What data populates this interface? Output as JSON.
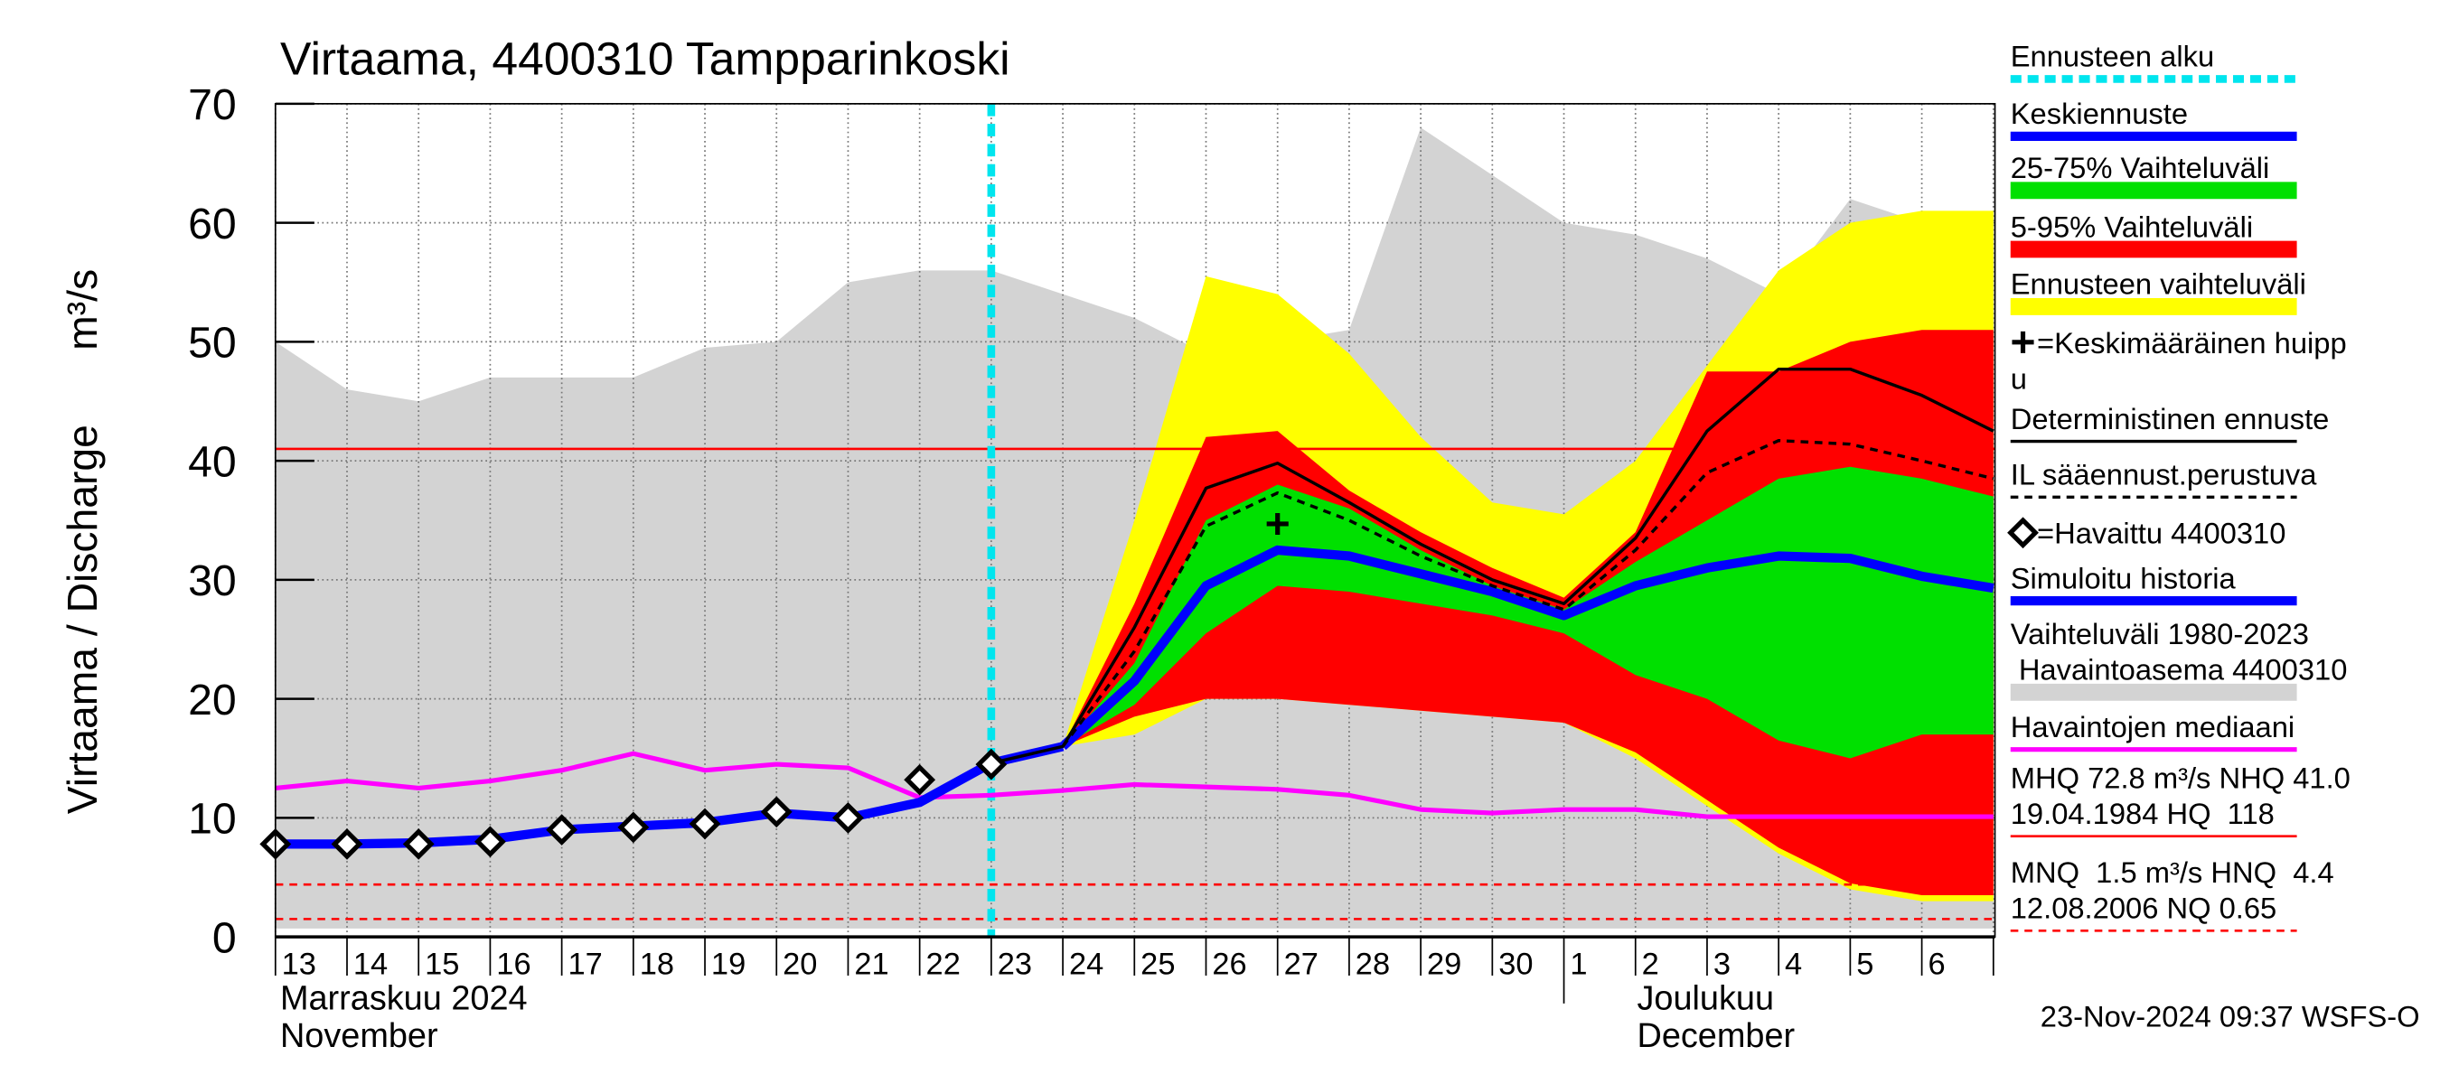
{
  "chart_data": {
    "type": "line",
    "title": "Virtaama, 4400310 Tampparinkoski",
    "y_label": "Virtaama / Discharge",
    "y_unit": "m³/s",
    "categories": [
      "13",
      "14",
      "15",
      "16",
      "17",
      "18",
      "19",
      "20",
      "21",
      "22",
      "23",
      "24",
      "25",
      "26",
      "27",
      "28",
      "29",
      "30",
      "1",
      "2",
      "3",
      "4",
      "5",
      "6",
      null
    ],
    "months": [
      [
        "Marraskuu 2024",
        "November"
      ],
      [
        "Joulukuu",
        "December"
      ]
    ],
    "ylim": [
      0,
      70
    ],
    "yticks": [
      0,
      10,
      20,
      30,
      40,
      50,
      60,
      70
    ],
    "grid": true,
    "forecast_start": "23",
    "forecast_color": "#00e5ee",
    "series": [
      {
        "kind": "band",
        "color": "#d3d3d3",
        "values": [
          50,
          46,
          45,
          47,
          47,
          47,
          49.5,
          50,
          55,
          56,
          56,
          54,
          52,
          49,
          50,
          51,
          68,
          64,
          60,
          59,
          57,
          54,
          62,
          60,
          59
        ],
        "lower": [
          0.7,
          0.7,
          0.7,
          0.7,
          0.7,
          0.7,
          0.7,
          0.7,
          0.7,
          0.7,
          0.7,
          0.7,
          0.7,
          0.7,
          0.7,
          0.7,
          0.7,
          0.7,
          0.7,
          0.7,
          0.7,
          0.7,
          0.7,
          0.7,
          0.7
        ]
      },
      {
        "kind": "band",
        "color": "#ffff00",
        "values": [
          null,
          null,
          null,
          null,
          null,
          null,
          null,
          null,
          null,
          null,
          null,
          16,
          35,
          55.5,
          54,
          49,
          42,
          36.5,
          35.5,
          40,
          48,
          56,
          60,
          61,
          61
        ],
        "lower": [
          null,
          null,
          null,
          null,
          null,
          null,
          null,
          null,
          null,
          null,
          null,
          16,
          17,
          20,
          20,
          19.5,
          19,
          18.5,
          18,
          15,
          11,
          7,
          4,
          3,
          3
        ]
      },
      {
        "kind": "band",
        "color": "#ff0000",
        "values": [
          null,
          null,
          null,
          null,
          null,
          null,
          null,
          null,
          null,
          null,
          null,
          16,
          28,
          42,
          42.5,
          37.5,
          34,
          31,
          28.5,
          34,
          47.5,
          47.5,
          50,
          51,
          51
        ],
        "lower": [
          null,
          null,
          null,
          null,
          null,
          null,
          null,
          null,
          null,
          null,
          null,
          16,
          18.5,
          20,
          20,
          19.5,
          19,
          18.5,
          18,
          15.5,
          11.5,
          7.5,
          4.5,
          3.5,
          3.5
        ]
      },
      {
        "kind": "band",
        "color": "#00e000",
        "values": [
          null,
          null,
          null,
          null,
          null,
          null,
          null,
          null,
          null,
          null,
          null,
          16,
          23,
          35,
          38,
          36,
          32.5,
          29.5,
          27.5,
          31.5,
          35,
          38.5,
          39.5,
          38.5,
          37
        ],
        "lower": [
          null,
          null,
          null,
          null,
          null,
          null,
          null,
          null,
          null,
          null,
          null,
          16,
          19.5,
          25.5,
          29.5,
          29,
          28,
          27,
          25.5,
          22,
          20,
          16.5,
          15,
          17,
          17
        ]
      },
      {
        "kind": "line",
        "color": "#ff00ff",
        "width": 3,
        "values": [
          12.5,
          13.1,
          12.5,
          13.1,
          14,
          15.4,
          14,
          14.5,
          14.2,
          11.7,
          11.9,
          12.3,
          12.8,
          12.6,
          12.4,
          11.9,
          10.7,
          10.4,
          10.7,
          10.7,
          10.1,
          10.1,
          10.1,
          10.1,
          10.1
        ]
      },
      {
        "kind": "line",
        "color": "#0000ff",
        "width": 6,
        "values": [
          7.8,
          7.8,
          7.9,
          8.2,
          9,
          9.3,
          9.6,
          10.4,
          10,
          11.3,
          14.6,
          16,
          null,
          null,
          null,
          null,
          null,
          null,
          null,
          null,
          null,
          null,
          null,
          null,
          null
        ]
      },
      {
        "kind": "line",
        "color": "#0000ff",
        "width": 6,
        "values": [
          null,
          null,
          null,
          null,
          null,
          null,
          null,
          null,
          null,
          null,
          null,
          16,
          21.5,
          29.5,
          32.5,
          32,
          30.5,
          29,
          27,
          29.5,
          31,
          32,
          31.8,
          30.3,
          29.3
        ]
      },
      {
        "kind": "line",
        "color": "#000000",
        "width": 2,
        "dash": true,
        "values": [
          null,
          null,
          null,
          null,
          null,
          null,
          null,
          null,
          null,
          null,
          null,
          16,
          24,
          34.5,
          37.3,
          35,
          32,
          29.5,
          27.5,
          32.5,
          39,
          41.7,
          41.4,
          40,
          38.5
        ]
      },
      {
        "kind": "line",
        "color": "#000000",
        "width": 2,
        "values": [
          null,
          null,
          null,
          null,
          null,
          null,
          null,
          null,
          null,
          null,
          14.6,
          16,
          26,
          37.7,
          39.8,
          36.5,
          33,
          30,
          28,
          33.5,
          42.5,
          47.7,
          47.7,
          45.5,
          42.5
        ]
      },
      {
        "kind": "marker",
        "marker": "diamond",
        "color": "#000000",
        "values": [
          7.8,
          7.8,
          7.8,
          8,
          9,
          9.2,
          9.5,
          10.5,
          10,
          13.2,
          14.5,
          null,
          null,
          null,
          null,
          null,
          null,
          null,
          null,
          null,
          null,
          null,
          null,
          null,
          null
        ]
      },
      {
        "kind": "marker",
        "marker": "plus",
        "color": "#000000",
        "values": [
          null,
          null,
          null,
          null,
          null,
          null,
          null,
          null,
          null,
          null,
          null,
          null,
          null,
          null,
          34.7,
          null,
          null,
          null,
          null,
          null,
          null,
          null,
          null,
          null,
          null
        ]
      }
    ],
    "hlines": [
      {
        "value": 41,
        "color": "#ff0000"
      },
      {
        "value": 4.4,
        "color": "#ff0000",
        "dash": true
      },
      {
        "value": 1.5,
        "color": "#ff0000",
        "dash": true
      }
    ],
    "legend": [
      {
        "lines": [
          "Ennusteen alku"
        ],
        "color": "#00e5ee",
        "width": 5,
        "dash": true
      },
      {
        "lines": [
          "Keskiennuste"
        ],
        "color": "#0000ff",
        "width": 6
      },
      {
        "lines": [
          "25-75% Vaihteluväli"
        ],
        "color": "#00e000",
        "width": 11
      },
      {
        "lines": [
          "5-95% Vaihteluväli"
        ],
        "color": "#ff0000",
        "width": 11
      },
      {
        "lines": [
          "Ennusteen vaihteluväli"
        ],
        "color": "#ffff00",
        "width": 11
      },
      {
        "lines": [
          "=Keskimääräinen huipp",
          "u"
        ],
        "marker": "plus"
      },
      {
        "lines": [
          "Deterministinen ennuste"
        ],
        "color": "#000000",
        "width": 2
      },
      {
        "lines": [
          "IL sääennust.perustuva"
        ],
        "color": "#000000",
        "width": 2,
        "dash": true
      },
      {
        "lines": [
          "=Havaittu 4400310"
        ],
        "marker": "diamond"
      },
      {
        "lines": [
          "Simuloitu historia"
        ],
        "color": "#0000ff",
        "width": 6
      },
      {
        "lines": [
          "Vaihteluväli 1980-2023",
          " Havaintoasema 4400310"
        ],
        "color": "#d3d3d3",
        "width": 11
      },
      {
        "lines": [
          "Havaintojen mediaani"
        ],
        "color": "#ff00ff",
        "width": 3
      },
      {
        "lines": [
          "MHQ 72.8 m³/s NHQ 41.0",
          "19.04.1984 HQ  118"
        ],
        "color": "#ff0000",
        "width": 1.5
      },
      {
        "lines": [
          "MNQ  1.5 m³/s HNQ  4.4",
          "12.08.2006 NQ 0.65"
        ],
        "color": "#ff0000",
        "width": 1.5,
        "dash": true
      }
    ],
    "footer": "23-Nov-2024 09:37 WSFS-O"
  }
}
